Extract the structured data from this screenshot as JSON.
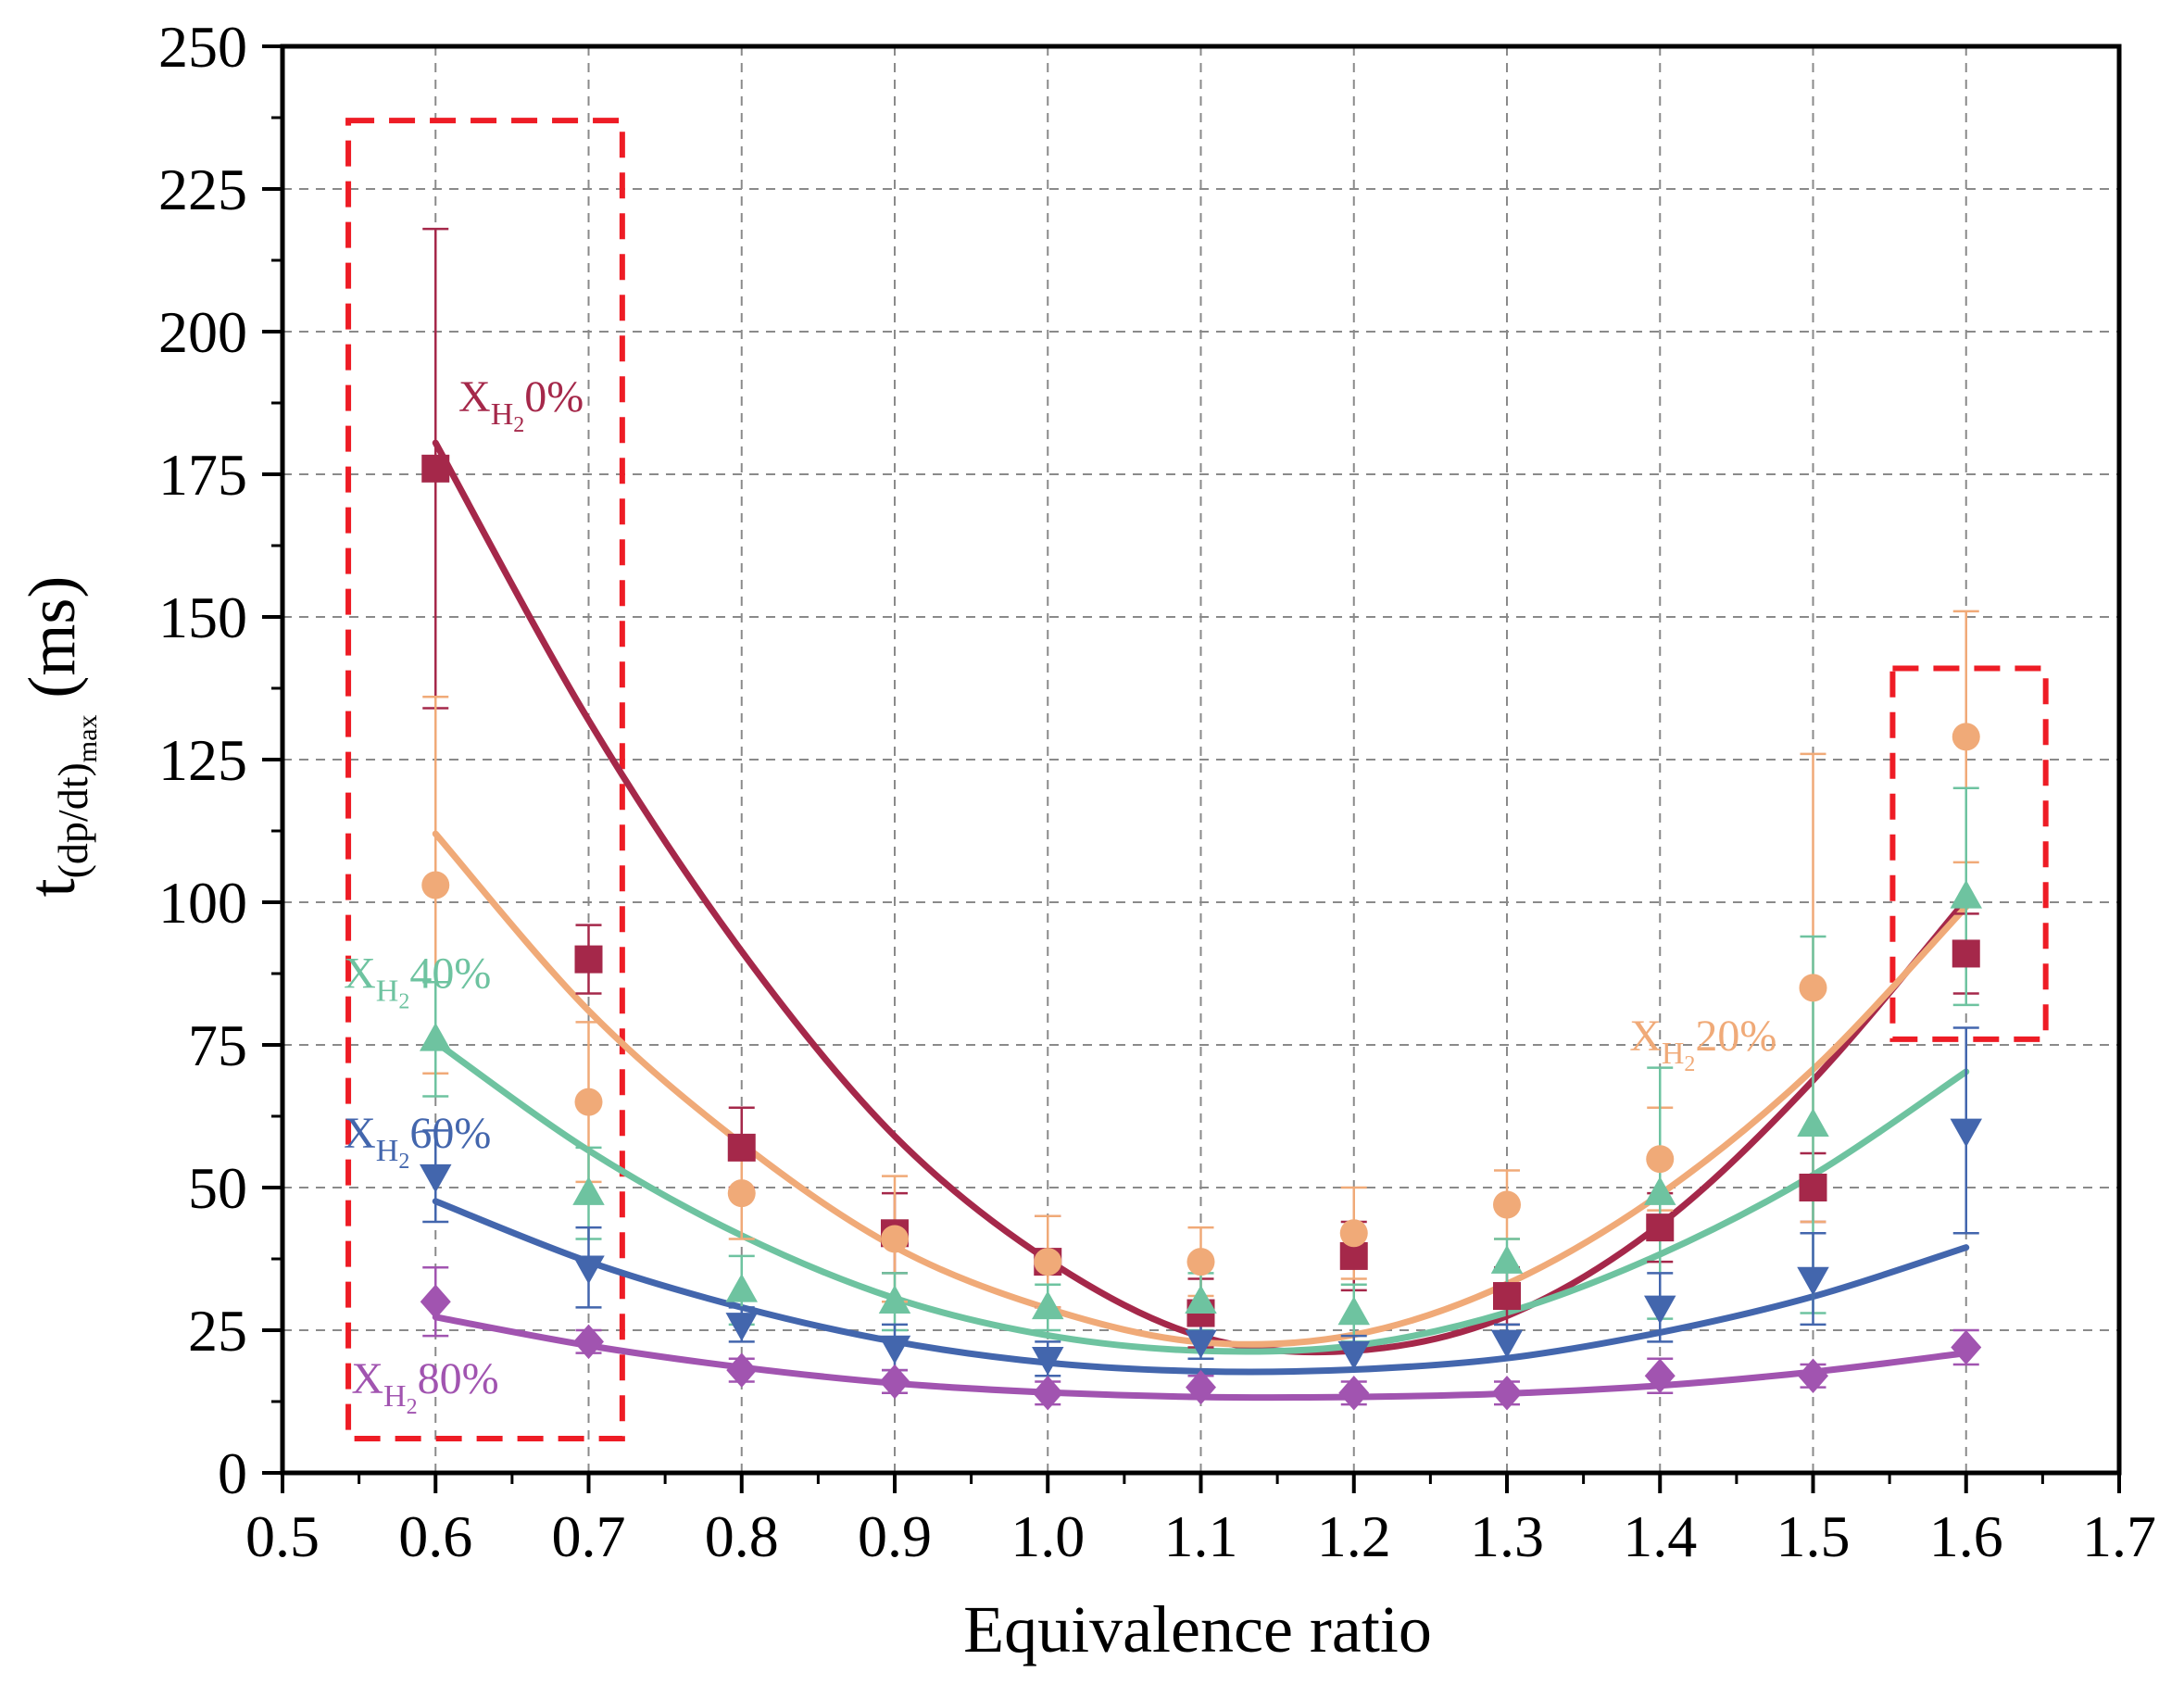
{
  "chart_data": {
    "type": "scatter",
    "xlabel": "Equivalence ratio",
    "ylabel": {
      "main": "t",
      "subscript": "(dp/dt)",
      "sub2": "max",
      "units": "(ms)"
    },
    "xlim": [
      0.5,
      1.7
    ],
    "ylim": [
      0,
      250
    ],
    "xticks": [
      "0.5",
      "0.6",
      "0.7",
      "0.8",
      "0.9",
      "1.0",
      "1.1",
      "1.2",
      "1.3",
      "1.4",
      "1.5",
      "1.6",
      "1.7"
    ],
    "yticks": [
      "0",
      "25",
      "50",
      "75",
      "100",
      "125",
      "150",
      "175",
      "200",
      "225",
      "250"
    ],
    "grid": true,
    "x": [
      0.6,
      0.7,
      0.8,
      0.9,
      1.0,
      1.1,
      1.2,
      1.3,
      1.4,
      1.5,
      1.6
    ],
    "series": [
      {
        "name": "XH2 0%",
        "label_prefix": "X",
        "label_sub": "H",
        "label_sub2": "2",
        "label_suffix": "0%",
        "color": "#a5284a",
        "marker": "square",
        "values": [
          176,
          90,
          57,
          42,
          37,
          28,
          38,
          31,
          43,
          50,
          91
        ],
        "err": [
          42,
          6,
          7,
          7,
          8,
          6,
          6,
          5,
          6,
          6,
          7
        ],
        "fit": [
          180.5,
          131.9,
          91.4,
          59.0,
          37.3,
          23.9,
          21.4,
          27.5,
          43.5,
          68.8,
          100.4
        ]
      },
      {
        "name": "XH2 20%",
        "label_prefix": "X",
        "label_sub": "H",
        "label_sub2": "2",
        "label_suffix": "20%",
        "color": "#f0aa78",
        "marker": "circle",
        "values": [
          103,
          65,
          49,
          41,
          37,
          37,
          42,
          47,
          55,
          85,
          129
        ],
        "err": [
          33,
          14,
          8,
          11,
          8,
          6,
          8,
          6,
          9,
          41,
          22
        ],
        "fit": [
          112,
          81,
          57.7,
          39.6,
          28.8,
          22.9,
          24.2,
          33.1,
          48.8,
          70.7,
          99.2
        ]
      },
      {
        "name": "XH2 40%",
        "label_prefix": "X",
        "label_sub": "H",
        "label_sub2": "2",
        "label_suffix": "40%",
        "color": "#6ec3a0",
        "marker": "triangle-up",
        "values": [
          76,
          49,
          32,
          30,
          29,
          30,
          28,
          37,
          49,
          61,
          101
        ],
        "err": [
          10,
          8,
          6,
          5,
          4,
          5,
          5,
          4,
          22,
          33,
          19
        ],
        "fit": [
          75.5,
          56.5,
          41.6,
          30.6,
          24.1,
          21.4,
          22.3,
          28.1,
          38.3,
          52.2,
          70.3
        ]
      },
      {
        "name": "XH2 60%",
        "label_prefix": "X",
        "label_sub": "H",
        "label_sub2": "2",
        "label_suffix": "60%",
        "color": "#4366ad",
        "marker": "triangle-down",
        "values": [
          52,
          36,
          26,
          22,
          20,
          23,
          21,
          23,
          29,
          34,
          60
        ],
        "err": [
          8,
          7,
          3,
          4,
          3,
          3,
          3,
          3,
          6,
          8,
          18
        ],
        "fit": [
          47.6,
          37,
          29,
          23,
          19.3,
          17.8,
          18.1,
          20.1,
          24.6,
          30.9,
          39.5
        ]
      },
      {
        "name": "XH2 80%",
        "label_prefix": "X",
        "label_sub": "H",
        "label_sub2": "2",
        "label_suffix": "80%",
        "color": "#a154b0",
        "marker": "diamond",
        "values": [
          30,
          23,
          18,
          16,
          14,
          15,
          14,
          14,
          17,
          17,
          22
        ],
        "err": [
          6,
          2,
          2,
          2,
          2,
          2,
          2,
          2,
          3,
          2,
          3
        ],
        "fit": [
          27.3,
          22.3,
          18.5,
          15.7,
          14.1,
          13.3,
          13.3,
          13.9,
          15.3,
          17.7,
          21.0
        ]
      }
    ],
    "annotations": [
      {
        "type": "dashed-box",
        "color": "#ee1c25",
        "x0": 0.543,
        "x1": 0.722,
        "y0": 6,
        "y1": 237
      },
      {
        "type": "dashed-box",
        "color": "#ee1c25",
        "x0": 1.552,
        "x1": 1.652,
        "y0": 76,
        "y1": 141
      }
    ],
    "label_positions": [
      {
        "series": 0,
        "x": 0.615,
        "y": 186
      },
      {
        "series": 1,
        "x": 1.38,
        "y": 74
      },
      {
        "series": 2,
        "x": 0.54,
        "y": 85
      },
      {
        "series": 3,
        "x": 0.54,
        "y": 57
      },
      {
        "series": 4,
        "x": 0.545,
        "y": 14
      }
    ]
  }
}
